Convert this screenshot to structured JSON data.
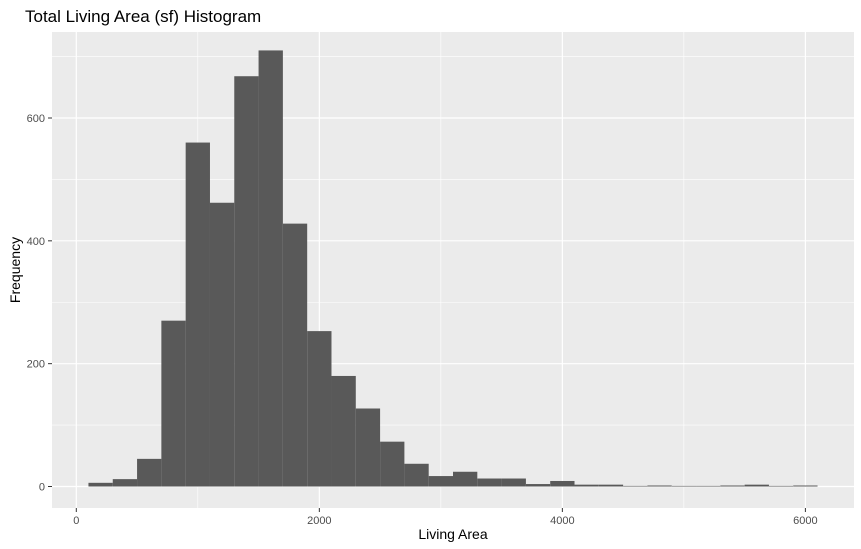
{
  "chart_data": {
    "type": "bar",
    "title": "Total Living Area (sf) Histogram",
    "xlabel": "Living Area",
    "ylabel": "Frequency",
    "bin_width": 200,
    "xlim": [
      -200,
      6400
    ],
    "ylim": [
      -35,
      740
    ],
    "x_ticks": [
      0,
      2000,
      4000,
      6000
    ],
    "y_ticks": [
      0,
      200,
      400,
      600
    ],
    "x_tick_labels": [
      "0",
      "2000",
      "4000",
      "6000"
    ],
    "y_tick_labels": [
      "0",
      "200",
      "400",
      "600"
    ],
    "grid": true,
    "bins": [
      {
        "x": 200,
        "y": 6
      },
      {
        "x": 400,
        "y": 12
      },
      {
        "x": 600,
        "y": 45
      },
      {
        "x": 800,
        "y": 270
      },
      {
        "x": 1000,
        "y": 560
      },
      {
        "x": 1200,
        "y": 462
      },
      {
        "x": 1400,
        "y": 668
      },
      {
        "x": 1600,
        "y": 710
      },
      {
        "x": 1800,
        "y": 428
      },
      {
        "x": 2000,
        "y": 253
      },
      {
        "x": 2200,
        "y": 180
      },
      {
        "x": 2400,
        "y": 127
      },
      {
        "x": 2600,
        "y": 73
      },
      {
        "x": 2800,
        "y": 37
      },
      {
        "x": 3000,
        "y": 17
      },
      {
        "x": 3200,
        "y": 24
      },
      {
        "x": 3400,
        "y": 13
      },
      {
        "x": 3600,
        "y": 13
      },
      {
        "x": 3800,
        "y": 4
      },
      {
        "x": 4000,
        "y": 9
      },
      {
        "x": 4200,
        "y": 3
      },
      {
        "x": 4400,
        "y": 3
      },
      {
        "x": 4600,
        "y": 0
      },
      {
        "x": 4800,
        "y": 1
      },
      {
        "x": 5000,
        "y": 0
      },
      {
        "x": 5200,
        "y": 0
      },
      {
        "x": 5400,
        "y": 1
      },
      {
        "x": 5600,
        "y": 3
      },
      {
        "x": 5800,
        "y": 0
      },
      {
        "x": 6000,
        "y": 1
      }
    ],
    "colors": {
      "panel_background": "#EBEBEB",
      "grid_major": "#FFFFFF",
      "bar_fill": "#595959",
      "tick_text": "#4D4D4D",
      "tick_mark": "#333333"
    }
  }
}
